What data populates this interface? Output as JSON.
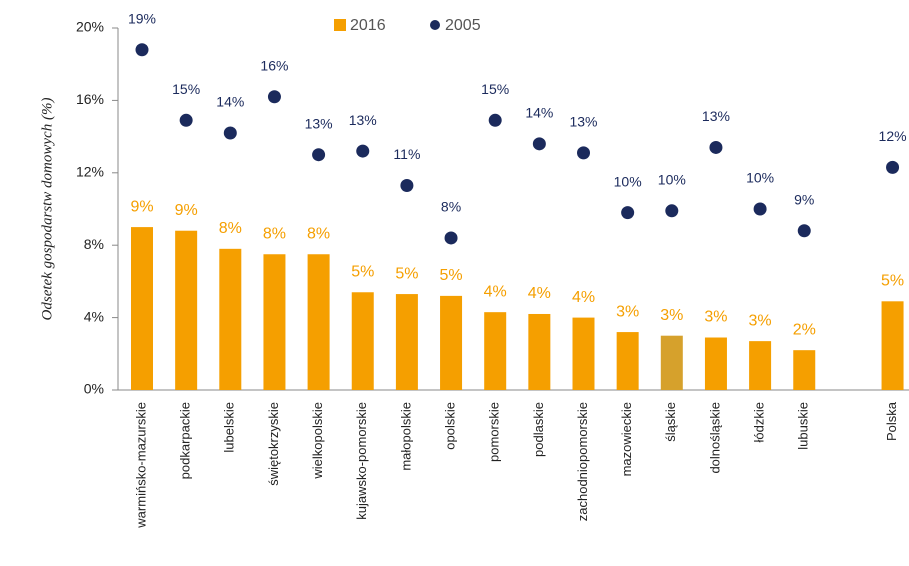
{
  "chart_data": {
    "type": "bar",
    "y_axis_label": "Odsetek gospodarstw domowych (%)",
    "categories": [
      "warmińsko-mazurskie",
      "podkarpackie",
      "lubelskie",
      "świętokrzyskie",
      "wielkopolskie",
      "kujawsko-pomorskie",
      "małopolskie",
      "opolskie",
      "pomorskie",
      "podlaskie",
      "zachodniopomorskie",
      "mazowieckie",
      "śląskie",
      "dolnośląskie",
      "łódzkie",
      "lubuskie",
      null,
      "Polska"
    ],
    "series": [
      {
        "name": "2016",
        "type": "bar",
        "color": "#f59f00",
        "colors": [
          "#f59f00",
          "#f59f00",
          "#f59f00",
          "#f59f00",
          "#f59f00",
          "#f59f00",
          "#f59f00",
          "#f59f00",
          "#f59f00",
          "#f59f00",
          "#f59f00",
          "#f59f00",
          "#d6a12c",
          "#f59f00",
          "#f59f00",
          "#f59f00",
          null,
          "#f59f00"
        ],
        "values": [
          9.0,
          8.8,
          7.8,
          7.5,
          7.5,
          5.4,
          5.3,
          5.2,
          4.3,
          4.2,
          4.0,
          3.2,
          3.0,
          2.9,
          2.7,
          2.2,
          null,
          4.9
        ],
        "value_labels": [
          "9%",
          "9%",
          "8%",
          "8%",
          "8%",
          "5%",
          "5%",
          "5%",
          "4%",
          "4%",
          "4%",
          "3%",
          "3%",
          "3%",
          "3%",
          "2%",
          null,
          "5%"
        ]
      },
      {
        "name": "2005",
        "type": "scatter",
        "color": "#1b2a5c",
        "values": [
          18.8,
          14.9,
          14.2,
          16.2,
          13.0,
          13.2,
          11.3,
          8.4,
          14.9,
          13.6,
          13.1,
          9.8,
          9.9,
          13.4,
          10.0,
          8.8,
          null,
          12.3
        ],
        "value_labels": [
          "19%",
          "15%",
          "14%",
          "16%",
          "13%",
          "13%",
          "11%",
          "8%",
          "15%",
          "14%",
          "13%",
          "10%",
          "10%",
          "13%",
          "10%",
          "9%",
          null,
          "12%"
        ]
      }
    ],
    "ylim": [
      0,
      20
    ],
    "yticks": [
      {
        "value": 0,
        "label": "0%"
      },
      {
        "value": 4,
        "label": "4%"
      },
      {
        "value": 8,
        "label": "8%"
      },
      {
        "value": 12,
        "label": "12%"
      },
      {
        "value": 16,
        "label": "16%"
      },
      {
        "value": 20,
        "label": "20%"
      }
    ],
    "grid": false,
    "legend": "top"
  }
}
